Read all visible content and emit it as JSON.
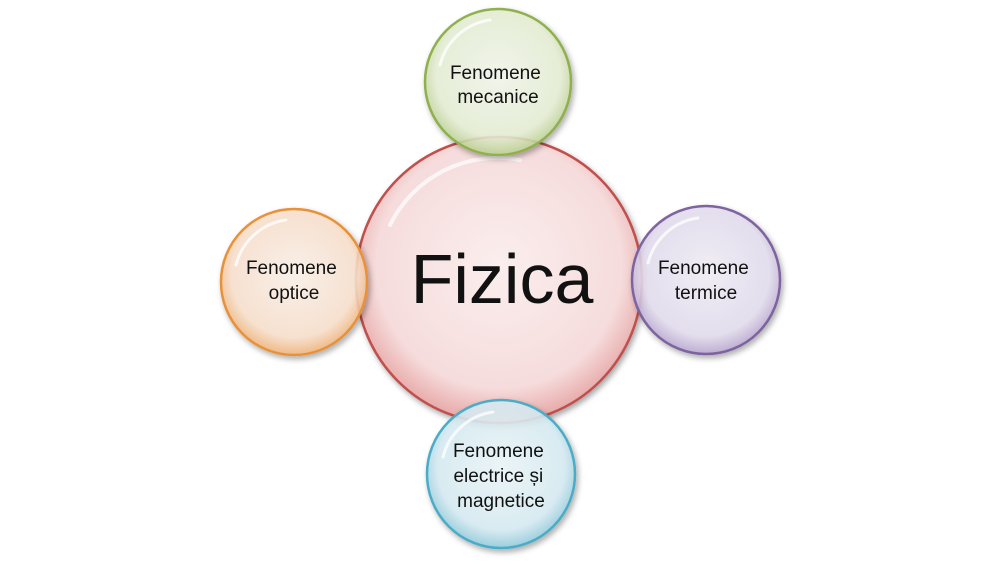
{
  "center": {
    "label": "Fizica",
    "color": "#C0504D"
  },
  "satellites": [
    {
      "id": "mecanice",
      "lines": [
        "Fenomene",
        "mecanice"
      ],
      "color": "#8FB04E"
    },
    {
      "id": "optice",
      "lines": [
        "Fenomene",
        "optice"
      ],
      "color": "#E8913A"
    },
    {
      "id": "termice",
      "lines": [
        "Fenomene",
        "termice"
      ],
      "color": "#7E64A0"
    },
    {
      "id": "electrice-magnetice",
      "lines": [
        "Fenomene",
        "electrice și",
        "magnetice"
      ],
      "color": "#4BACC6"
    }
  ]
}
